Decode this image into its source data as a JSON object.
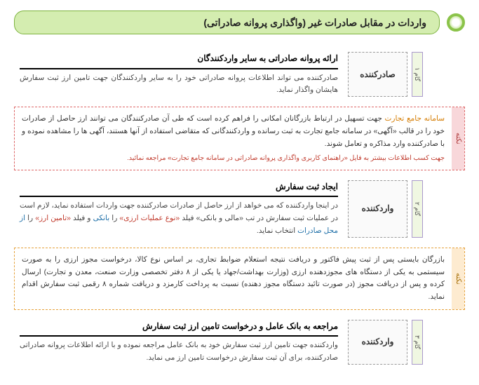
{
  "header": {
    "title": "واردات در مقابل صادرات غیر (واگذاری پروانه صادراتی)"
  },
  "steps": [
    {
      "tab": "گام ۱",
      "role": "صادرکننده",
      "title": "ارائه پروانه صادراتی به سایر واردکنندگان",
      "body_html": "صادرکننده می تواند اطلاعات پروانه صادراتی خود را به سایر واردکنندگان جهت تامین ارز ثبت سفارش هایشان واگذار نماید."
    },
    {
      "tab": "گام ۲",
      "role": "واردکننده",
      "title": "ایجاد ثبت سفارش",
      "body_html": "در اینجا واردکننده که می خواهد از ارز حاصل از صادرات صادرکننده جهت واردات استفاده نماید، لازم است در عملیات ثبت سفارش در تب «مالی و بانکی» فیلد <span class=\"hl-red\">«نوع عملیات ارزی»</span> را <span class=\"hl-blue\">بانکی</span> و فیلد <span class=\"hl-red\">«تامین ارز»</span> را <span class=\"hl-blue\">از محل صادرات</span> انتخاب نماید."
    },
    {
      "tab": "گام ۳",
      "role": "واردکننده",
      "title": "مراجعه به بانک عامل و درخواست تامین ارز ثبت سفارش",
      "body_html": "واردکننده جهت تامین ارز ثبت سفارش خود به بانک عامل مراجعه نموده و با ارائه اطلاعات پروانه صادراتی صادرکننده، برای آن ثبت سفارش درخواست تامین ارز می نماید."
    }
  ],
  "notes": [
    {
      "style": "red",
      "tab": "نکته",
      "body_html": "<span class=\"hl-orange\">سامانه جامع تجارت</span> جهت تسهیل در ارتباط بازرگانان امکانی را فراهم کرده است که طی آن صادرکنندگان می توانند ارز حاصل از صادرات خود را در قالب «آگهی» در سامانه جامع تجارت به ثبت رسانده و واردکنندگانی که متقاضی استفاده از آنها هستند، آگهی ها را مشاهده نموده و با صادرکننده وارد مذاکره و تعامل شوند.<span class=\"note-red-text\">جهت کسب اطلاعات بیشتر به فایل «راهنمای کاربری واگذاری پروانه صادراتی در سامانه جامع تجارت» مراجعه نمائید.</span>"
    },
    {
      "style": "orange",
      "tab": "نکته",
      "body_html": "بازرگان بایستی پس از ثبت پیش فاکتور و دریافت نتیجه استعلام ضوابط تجاری، بر اساس نوع کالا، درخواست مجوز ارزی را به صورت سیستمی به یکی از دستگاه های مجوزدهنده ارزی (وزارت بهداشت/جهاد یا یکی از ۸ دفتر تخصصی وزارت صنعت، معدن و تجارت) ارسال کرده و پس از دریافت مجوز (در صورت تائید دستگاه مجوز دهنده) نسبت به پرداخت کارمزد و دریافت شماره ۸ رقمی ثبت سفارش اقدام نماید."
    }
  ],
  "layout": [
    "step:0",
    "note:0",
    "step:1",
    "note:1",
    "step:2"
  ]
}
